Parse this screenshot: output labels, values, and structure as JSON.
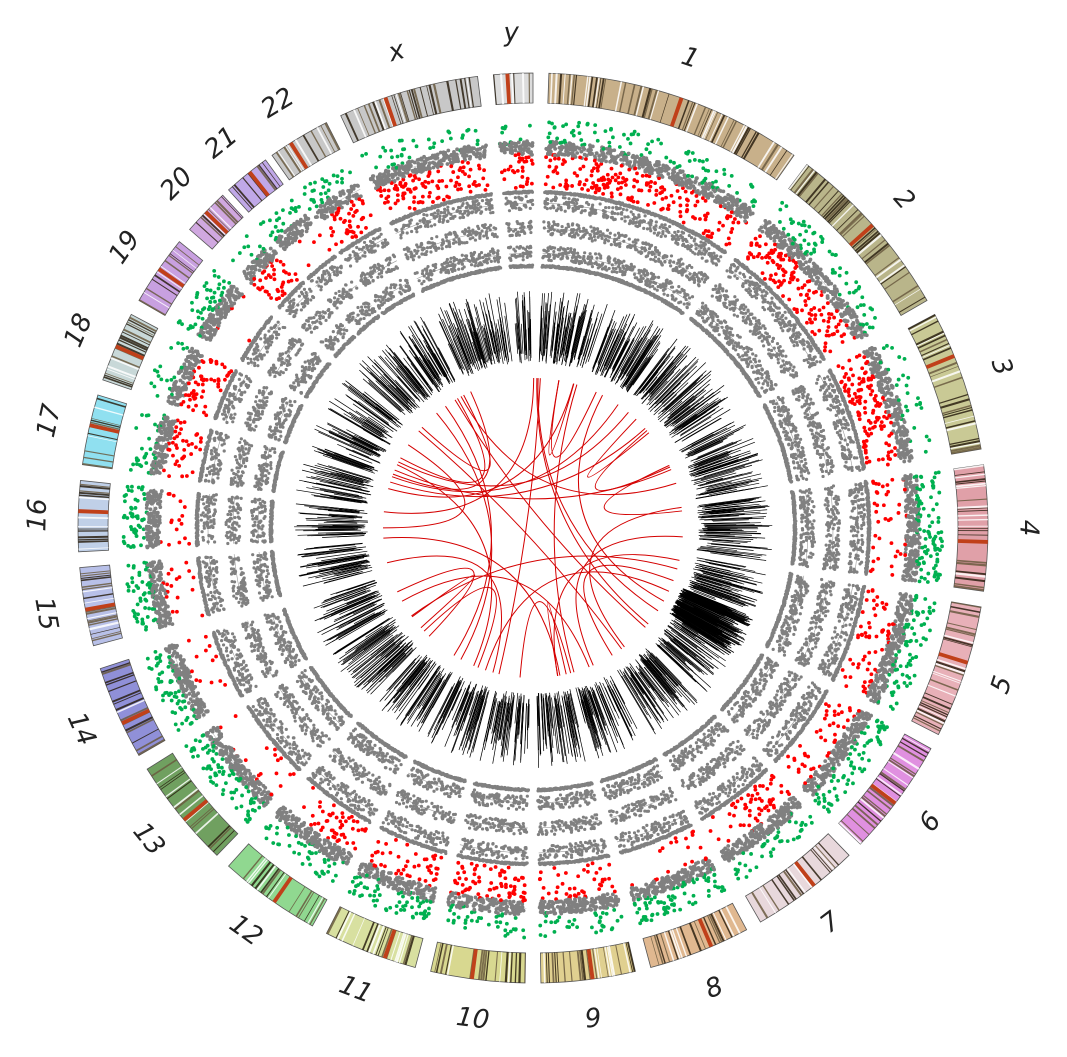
{
  "figure": {
    "chromosomes": [
      {
        "id": "1",
        "label": "1",
        "color": "#c8b08a"
      },
      {
        "id": "2",
        "label": "2",
        "color": "#b9b58a"
      },
      {
        "id": "3",
        "label": "3",
        "color": "#c9c995"
      },
      {
        "id": "4",
        "label": "4",
        "color": "#e0a0a8"
      },
      {
        "id": "5",
        "label": "5",
        "color": "#e8b0b8"
      },
      {
        "id": "6",
        "label": "6",
        "color": "#e090e0"
      },
      {
        "id": "7",
        "label": "7",
        "color": "#e8d8dc"
      },
      {
        "id": "8",
        "label": "8",
        "color": "#e0b890"
      },
      {
        "id": "9",
        "label": "9",
        "color": "#e0d090"
      },
      {
        "id": "10",
        "label": "10",
        "color": "#d8d890"
      },
      {
        "id": "11",
        "label": "11",
        "color": "#d8e0a0"
      },
      {
        "id": "12",
        "label": "12",
        "color": "#90d890"
      },
      {
        "id": "13",
        "label": "13",
        "color": "#70a060"
      },
      {
        "id": "14",
        "label": "14",
        "color": "#9090d8"
      },
      {
        "id": "15",
        "label": "15",
        "color": "#b8c0e8"
      },
      {
        "id": "16",
        "label": "16",
        "color": "#c0d0e8"
      },
      {
        "id": "17",
        "label": "17",
        "color": "#90e0f0"
      },
      {
        "id": "18",
        "label": "18",
        "color": "#c8d8d8"
      },
      {
        "id": "19",
        "label": "19",
        "color": "#c8a0e0"
      },
      {
        "id": "20",
        "label": "20",
        "color": "#d0a8e0"
      },
      {
        "id": "21",
        "label": "21",
        "color": "#c0a8e8"
      },
      {
        "id": "22",
        "label": "22",
        "color": "#c8c8c8"
      },
      {
        "id": "x",
        "label": "x",
        "color": "#c8c8c8"
      },
      {
        "id": "y",
        "label": "y",
        "color": "#dcdcdc"
      }
    ],
    "colors": {
      "gain": "#ff0000",
      "loss": "#00b050",
      "neutral": "#808080",
      "link": "#d40000",
      "density": "#000000",
      "band_dark": "#3a2a10",
      "centromere": "#c0401a"
    },
    "links_count": 40
  }
}
